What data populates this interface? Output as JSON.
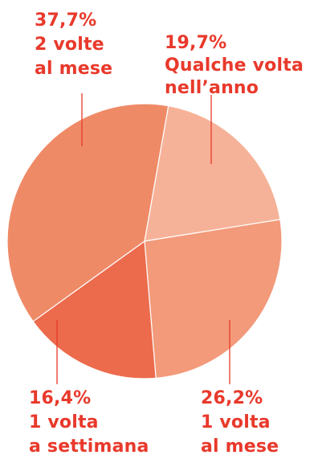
{
  "chart_data": {
    "type": "pie",
    "title": "",
    "label_color": "#e8392b",
    "slices": [
      {
        "value": 19.7,
        "percent_label": "19,7%",
        "label_lines": [
          "Qualche volta",
          "nell’anno"
        ],
        "color": "#f6b298"
      },
      {
        "value": 26.2,
        "percent_label": "26,2%",
        "label_lines": [
          "1 volta",
          "al mese"
        ],
        "color": "#f29a7a"
      },
      {
        "value": 16.4,
        "percent_label": "16,4%",
        "label_lines": [
          "1 volta",
          "a settimana"
        ],
        "color": "#ec6b4c"
      },
      {
        "value": 37.7,
        "percent_label": "37,7%",
        "label_lines": [
          "2 volte",
          "al mese"
        ],
        "color": "#ef8a67"
      }
    ]
  }
}
